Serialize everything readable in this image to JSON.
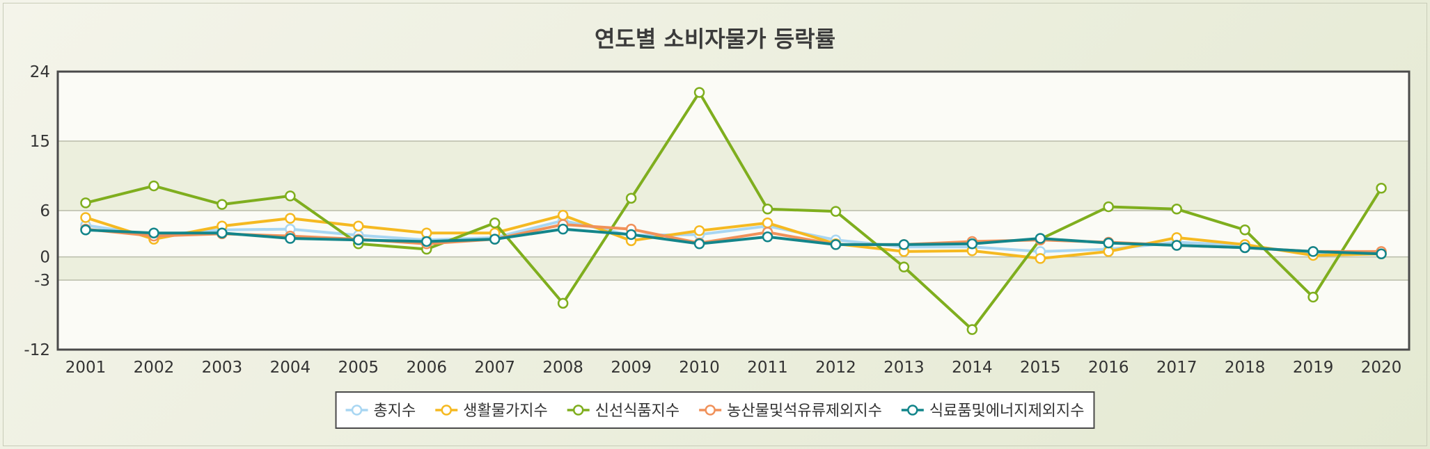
{
  "chart_data": {
    "type": "line",
    "title": "연도별 소비자물가 등락률",
    "xlabel": "",
    "ylabel": "",
    "categories": [
      "2001",
      "2002",
      "2003",
      "2004",
      "2005",
      "2006",
      "2007",
      "2008",
      "2009",
      "2010",
      "2011",
      "2012",
      "2013",
      "2014",
      "2015",
      "2016",
      "2017",
      "2018",
      "2019",
      "2020"
    ],
    "y_ticks": [
      24,
      15,
      6,
      0,
      -3,
      -12
    ],
    "ylim": [
      -12,
      24
    ],
    "grid": true,
    "legend_position": "bottom",
    "series": [
      {
        "name": "총지수",
        "color": "#a8d6f2",
        "values": [
          4.1,
          2.8,
          3.5,
          3.6,
          2.8,
          2.2,
          2.5,
          4.7,
          2.8,
          2.9,
          4.0,
          2.2,
          1.3,
          1.3,
          0.7,
          1.0,
          1.9,
          1.5,
          0.4,
          0.5
        ]
      },
      {
        "name": "생활물가지수",
        "color": "#f5b921",
        "values": [
          5.1,
          2.3,
          4.0,
          5.0,
          4.0,
          3.1,
          3.1,
          5.4,
          2.1,
          3.4,
          4.4,
          1.7,
          0.7,
          0.8,
          -0.2,
          0.7,
          2.5,
          1.6,
          0.2,
          0.4
        ]
      },
      {
        "name": "신선식품지수",
        "color": "#7fae1e",
        "values": [
          7.0,
          9.2,
          6.8,
          7.9,
          1.7,
          1.0,
          4.4,
          -6.0,
          7.6,
          21.3,
          6.2,
          5.9,
          -1.3,
          -9.4,
          2.3,
          6.5,
          6.2,
          3.5,
          -5.2,
          8.9
        ]
      },
      {
        "name": "농산물및석유류제외지수",
        "color": "#f0915a",
        "values": [
          3.6,
          2.7,
          3.0,
          2.7,
          2.3,
          1.7,
          2.3,
          4.2,
          3.6,
          1.8,
          3.2,
          1.6,
          1.6,
          2.0,
          2.2,
          1.9,
          1.5,
          1.2,
          0.7,
          0.7
        ]
      },
      {
        "name": "식료품및에너지제외지수",
        "color": "#13858a",
        "values": [
          3.5,
          3.1,
          3.1,
          2.4,
          2.2,
          2.0,
          2.3,
          3.6,
          2.9,
          1.7,
          2.6,
          1.6,
          1.6,
          1.7,
          2.4,
          1.8,
          1.5,
          1.2,
          0.7,
          0.4
        ]
      }
    ]
  }
}
